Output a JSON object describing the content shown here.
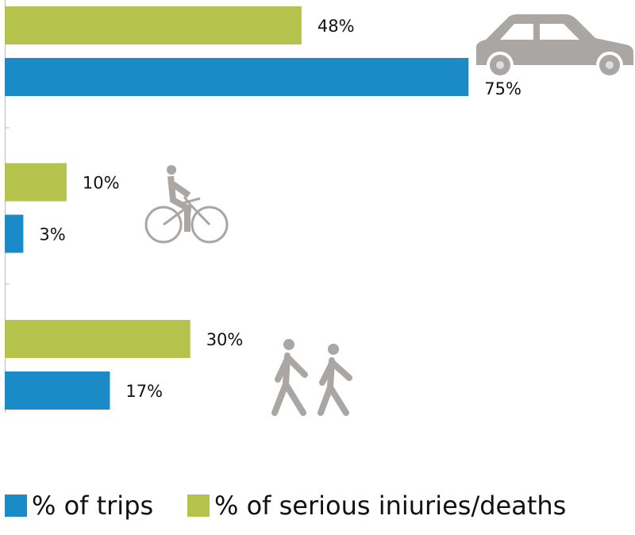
{
  "chart_data": {
    "type": "hbar",
    "categories": [
      null,
      null,
      null
    ],
    "series": [
      {
        "name": "% of trips",
        "color": "#1a8bc6",
        "values": [
          75,
          3,
          17
        ],
        "value_labels": [
          "75%",
          "3%",
          "17%"
        ]
      },
      {
        "name": "% of serious iniuries/deaths",
        "color": "#b5c24b",
        "values": [
          48,
          10,
          30
        ],
        "value_labels": [
          "48%",
          "10%",
          "30%"
        ]
      }
    ]
  }
}
